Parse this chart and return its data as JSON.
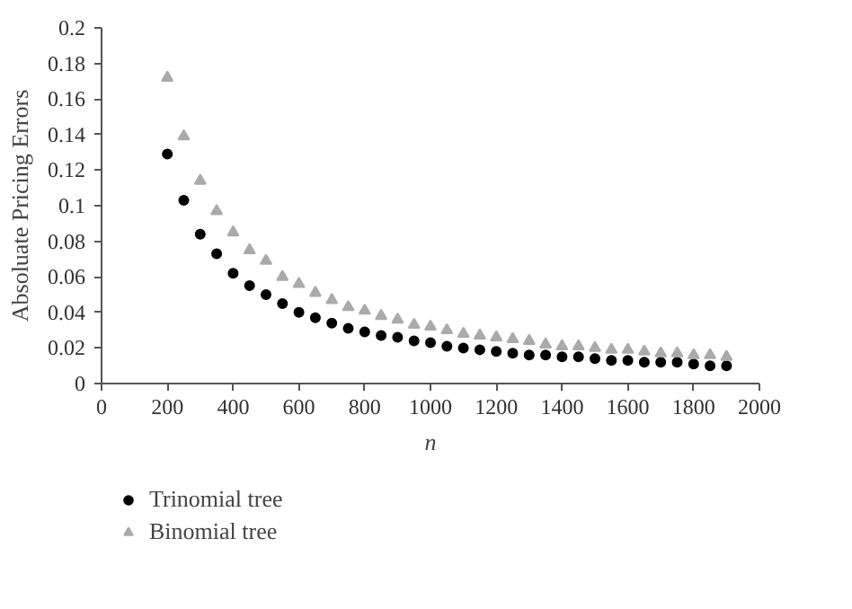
{
  "chart_data": {
    "type": "scatter",
    "xlabel": "n",
    "ylabel": "Absoluate Pricing Errors",
    "x": [
      200,
      250,
      300,
      350,
      400,
      450,
      500,
      550,
      600,
      650,
      700,
      750,
      800,
      850,
      900,
      950,
      1000,
      1050,
      1100,
      1150,
      1200,
      1250,
      1300,
      1350,
      1400,
      1450,
      1500,
      1550,
      1600,
      1650,
      1700,
      1750,
      1800,
      1850,
      1900
    ],
    "series": [
      {
        "name": "Trinomial tree",
        "color": "#000000",
        "marker": "circle",
        "values": [
          0.129,
          0.103,
          0.084,
          0.073,
          0.062,
          0.055,
          0.05,
          0.045,
          0.04,
          0.037,
          0.034,
          0.031,
          0.029,
          0.027,
          0.026,
          0.024,
          0.023,
          0.021,
          0.02,
          0.019,
          0.018,
          0.017,
          0.016,
          0.016,
          0.015,
          0.015,
          0.014,
          0.013,
          0.013,
          0.012,
          0.012,
          0.012,
          0.011,
          0.01,
          0.01
        ]
      },
      {
        "name": "Binomial tree",
        "color": "#aaaaaa",
        "marker": "triangle",
        "values": [
          0.172,
          0.139,
          0.114,
          0.097,
          0.085,
          0.075,
          0.069,
          0.06,
          0.056,
          0.051,
          0.047,
          0.043,
          0.041,
          0.038,
          0.036,
          0.033,
          0.032,
          0.03,
          0.028,
          0.027,
          0.026,
          0.025,
          0.024,
          0.022,
          0.021,
          0.021,
          0.02,
          0.019,
          0.019,
          0.018,
          0.017,
          0.017,
          0.016,
          0.016,
          0.015
        ]
      }
    ],
    "xlim": [
      0,
      2000
    ],
    "xticks": [
      0,
      200,
      400,
      600,
      800,
      1000,
      1200,
      1400,
      1600,
      1800,
      2000
    ],
    "ylim": [
      0,
      0.2
    ],
    "yticks": [
      0,
      0.02,
      0.04,
      0.06,
      0.08,
      0.1,
      0.12,
      0.14,
      0.16,
      0.18,
      0.2
    ],
    "grid": false,
    "legend": "bottom left"
  }
}
